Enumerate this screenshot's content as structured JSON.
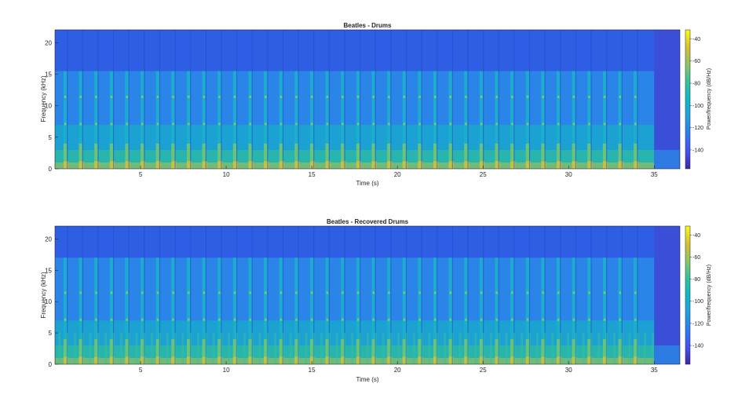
{
  "chart_data": [
    {
      "type": "heatmap",
      "title": "Beatles - Drums",
      "xlabel": "Time (s)",
      "ylabel": "Frequency (kHz)",
      "xlim": [
        0,
        36.5
      ],
      "ylim": [
        0,
        22.05
      ],
      "xticks": [
        5,
        10,
        15,
        20,
        25,
        30,
        35
      ],
      "yticks": [
        0,
        5,
        10,
        15,
        20
      ],
      "colorbar": {
        "label": "Power/frequency (dB/Hz)",
        "range": [
          -157,
          -32
        ],
        "ticks": [
          -40,
          -60,
          -80,
          -100,
          -120,
          -140
        ]
      },
      "texture": "drum hits as vertical bright bands at regular intervals; content band-limited near 15.5 kHz; decaying tail after 35 s",
      "hit_times_s": [
        0.5,
        1.4,
        2.3,
        3.2,
        4.1,
        5.0,
        5.9,
        6.8,
        7.7,
        8.6,
        9.5,
        10.4,
        11.3,
        12.2,
        13.1,
        14.0,
        14.9,
        15.8,
        16.7,
        17.6,
        18.5,
        19.4,
        20.3,
        21.2,
        22.1,
        23.0,
        23.9,
        24.8,
        25.7,
        26.6,
        27.5,
        28.4,
        29.3,
        30.2,
        31.1,
        32.0,
        32.9,
        33.8
      ],
      "band_limit_khz": 15.5,
      "end_time_s": 35
    },
    {
      "type": "heatmap",
      "title": "Beatles - Recovered Drums",
      "xlabel": "Time (s)",
      "ylabel": "Frequency (kHz)",
      "xlim": [
        0,
        36.5
      ],
      "ylim": [
        0,
        22.05
      ],
      "xticks": [
        5,
        10,
        15,
        20,
        25,
        30,
        35
      ],
      "yticks": [
        0,
        5,
        10,
        15,
        20
      ],
      "colorbar": {
        "label": "Power/frequency (dB/Hz)",
        "range": [
          -157,
          -32
        ],
        "ticks": [
          -40,
          -60,
          -80,
          -100,
          -120,
          -140
        ]
      },
      "texture": "recovered drums with residual bleed; energy extends to about 17 kHz; denser low-frequency content between hits",
      "hit_times_s": [
        0.5,
        1.4,
        2.3,
        3.2,
        4.1,
        5.0,
        5.9,
        6.8,
        7.7,
        8.6,
        9.5,
        10.4,
        11.3,
        12.2,
        13.1,
        14.0,
        14.9,
        15.8,
        16.7,
        17.6,
        18.5,
        19.4,
        20.3,
        21.2,
        22.1,
        23.0,
        23.9,
        24.8,
        25.7,
        26.6,
        27.5,
        28.4,
        29.3,
        30.2,
        31.1,
        32.0,
        32.9,
        33.8
      ],
      "band_limit_khz": 17.0,
      "end_time_s": 35
    }
  ]
}
